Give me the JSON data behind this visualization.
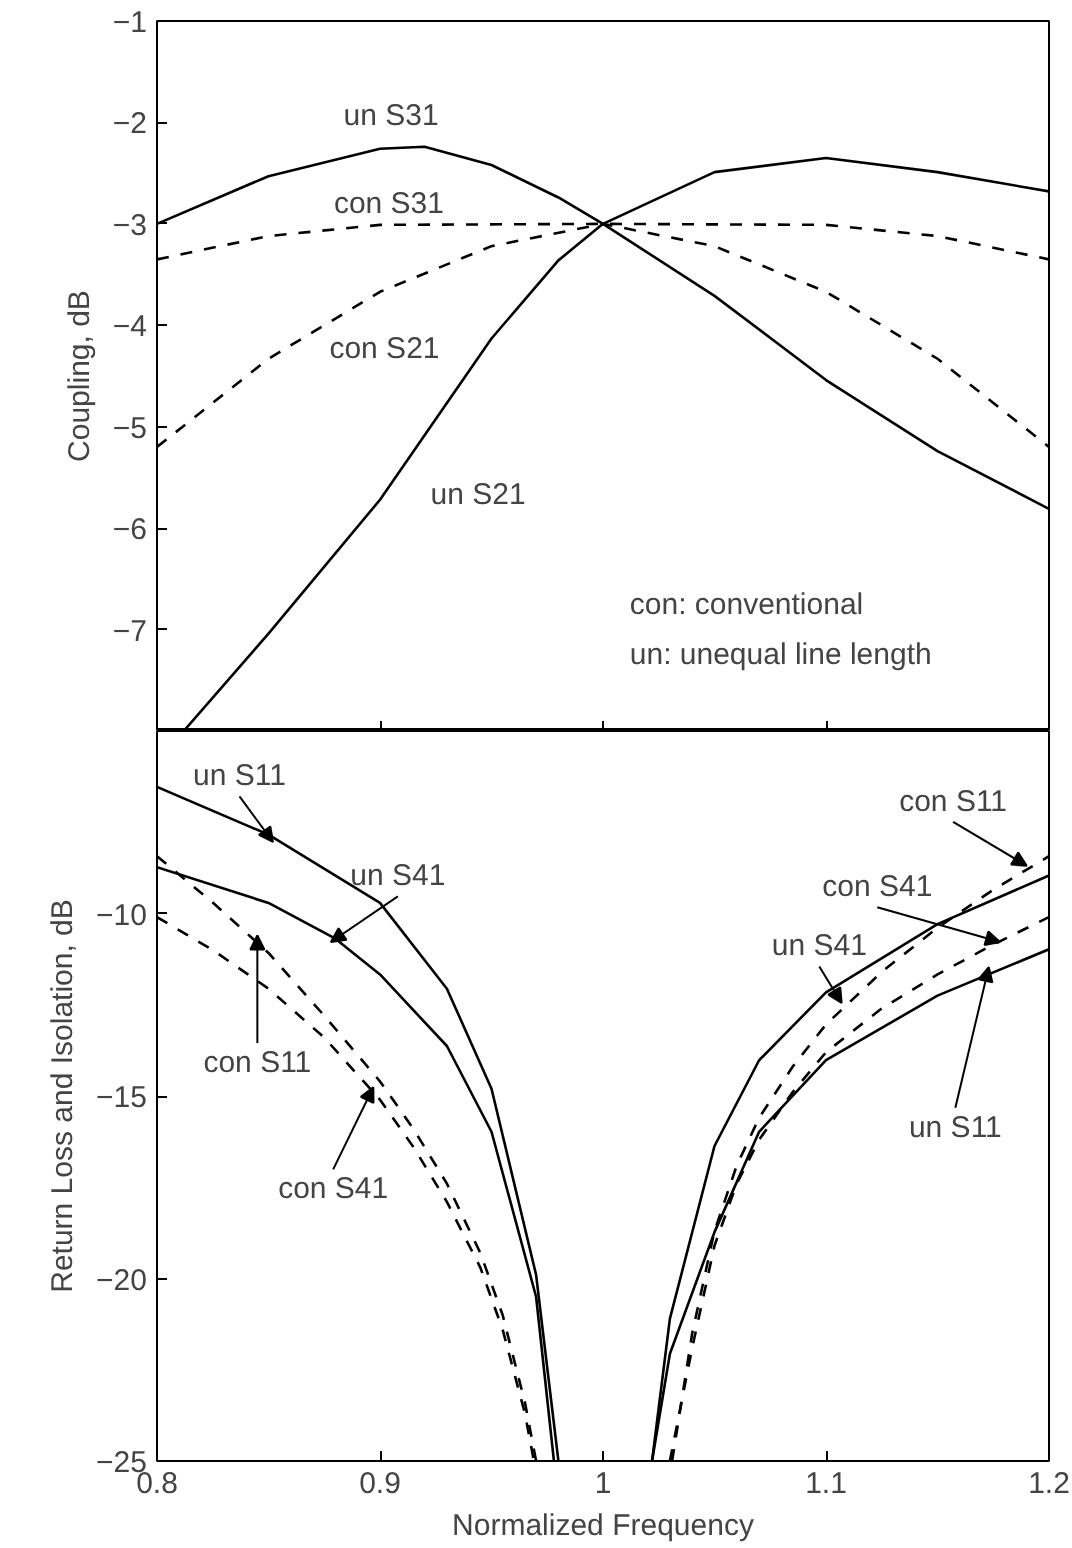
{
  "chart_data": [
    {
      "type": "line",
      "ylabel": "Coupling, dB",
      "xlim": [
        0.8,
        1.2
      ],
      "xticks": [
        0.8,
        0.9,
        1,
        1.1,
        1.2
      ],
      "ylim": [
        -8,
        -1
      ],
      "yticks": [
        -7,
        -6,
        -5,
        -4,
        -3,
        -2,
        -1
      ],
      "tick_labels": "y",
      "grid": false,
      "legend": false,
      "annotations": [
        "con: conventional",
        "un: unequal line length"
      ],
      "series": [
        {
          "name": "un S31",
          "color": "#000000",
          "line_style": "solid",
          "x": [
            0.8,
            0.85,
            0.9,
            0.92,
            0.95,
            0.98,
            1.0,
            1.05,
            1.1,
            1.15,
            1.2
          ],
          "values": [
            -3.0,
            -2.53,
            -2.26,
            -2.24,
            -2.42,
            -2.74,
            -3.0,
            -3.71,
            -4.54,
            -5.24,
            -5.81
          ]
        },
        {
          "name": "con S31",
          "color": "#000000",
          "line_style": "dashed",
          "x": [
            0.8,
            0.85,
            0.9,
            1.0,
            1.1,
            1.15,
            1.2
          ],
          "values": [
            -3.35,
            -3.12,
            -3.01,
            -3.0,
            -3.01,
            -3.12,
            -3.35
          ]
        },
        {
          "name": "con S21",
          "color": "#000000",
          "line_style": "dashed",
          "x": [
            0.8,
            0.85,
            0.9,
            0.95,
            1.0,
            1.05,
            1.1,
            1.15,
            1.2
          ],
          "values": [
            -5.2,
            -4.33,
            -3.67,
            -3.22,
            -3.0,
            -3.22,
            -3.67,
            -4.33,
            -5.2
          ]
        },
        {
          "name": "un S21",
          "color": "#000000",
          "line_style": "solid",
          "x": [
            0.812,
            0.85,
            0.9,
            0.95,
            0.98,
            1.0,
            1.05,
            1.1,
            1.15,
            1.2
          ],
          "values": [
            -8.0,
            -7.04,
            -5.72,
            -4.13,
            -3.36,
            -3.0,
            -2.49,
            -2.35,
            -2.49,
            -2.68
          ]
        }
      ]
    },
    {
      "type": "line",
      "xlabel": "Normalized Frequency",
      "ylabel": "Return Loss and Isolation, dB",
      "xlim": [
        0.8,
        1.2
      ],
      "xticks": [
        0.8,
        0.9,
        1,
        1.1,
        1.2
      ],
      "ylim": [
        -25,
        -5
      ],
      "yticks": [
        -25,
        -20,
        -15,
        -10
      ],
      "grid": false,
      "legend": false,
      "annotations": [
        {
          "text": "un S11",
          "x": 0.852,
          "y": -8.04
        },
        {
          "text": "un S41",
          "x": 0.878,
          "y": -10.78
        },
        {
          "text": "con S11",
          "x": 0.845,
          "y": -10.6
        },
        {
          "text": "con S41",
          "x": 0.897,
          "y": -14.76
        },
        {
          "text": "con S11",
          "x": 1.19,
          "y": -8.69
        },
        {
          "text": "con S41",
          "x": 1.178,
          "y": -10.78
        },
        {
          "text": "un S41",
          "x": 1.107,
          "y": -12.45
        },
        {
          "text": "un S11",
          "x": 1.173,
          "y": -11.47
        }
      ],
      "series": [
        {
          "color": "#000000",
          "line_style": "solid",
          "x": [
            0.8,
            0.85,
            0.9,
            0.93,
            0.95,
            0.97,
            0.98,
            1.0,
            1.022,
            1.03,
            1.05,
            1.07,
            1.1,
            1.15,
            1.2
          ],
          "values": [
            -6.53,
            -7.84,
            -9.71,
            -12.06,
            -14.8,
            -19.9,
            -25,
            null,
            -25,
            -22.06,
            -18.73,
            -15.98,
            -14.02,
            -12.25,
            -10.98
          ]
        },
        {
          "color": "#000000",
          "line_style": "solid",
          "x": [
            0.8,
            0.85,
            0.88,
            0.9,
            0.93,
            0.95,
            0.97,
            0.978,
            1.0,
            1.022,
            1.03,
            1.05,
            1.07,
            1.1,
            1.15,
            1.2
          ],
          "values": [
            -8.73,
            -9.71,
            -10.69,
            -11.67,
            -13.63,
            -15.98,
            -20.5,
            -25,
            null,
            -25,
            -21.1,
            -16.37,
            -14.02,
            -12.16,
            -10.29,
            -8.96
          ]
        },
        {
          "color": "#000000",
          "line_style": "dashed",
          "x": [
            0.8,
            0.825,
            0.85,
            0.875,
            0.9,
            0.915,
            0.93,
            0.945,
            0.955,
            0.965,
            0.97,
            1.0,
            1.031,
            1.04,
            1.05,
            1.06,
            1.07,
            1.085,
            1.1,
            1.125,
            1.15,
            1.175,
            1.2
          ],
          "values": [
            -8.43,
            -9.7,
            -11.08,
            -12.8,
            -14.6,
            -15.9,
            -17.4,
            -19.3,
            -21.0,
            -23.4,
            -25,
            null,
            -25,
            -21.5,
            -18.7,
            -16.9,
            -15.6,
            -14.2,
            -13.04,
            -11.6,
            -10.39,
            -9.35,
            -8.43
          ]
        },
        {
          "color": "#000000",
          "line_style": "dashed",
          "x": [
            0.8,
            0.825,
            0.85,
            0.875,
            0.9,
            0.915,
            0.93,
            0.945,
            0.955,
            0.965,
            0.969,
            1.0,
            1.03,
            1.04,
            1.05,
            1.06,
            1.07,
            1.085,
            1.1,
            1.125,
            1.15,
            1.175,
            1.2
          ],
          "values": [
            -10.1,
            -11.0,
            -12.06,
            -13.4,
            -15.1,
            -16.4,
            -17.9,
            -19.7,
            -21.4,
            -23.7,
            -25,
            null,
            -25,
            -21.9,
            -19.1,
            -17.4,
            -16.2,
            -14.9,
            -13.8,
            -12.6,
            -11.67,
            -10.85,
            -10.1
          ]
        }
      ]
    }
  ]
}
